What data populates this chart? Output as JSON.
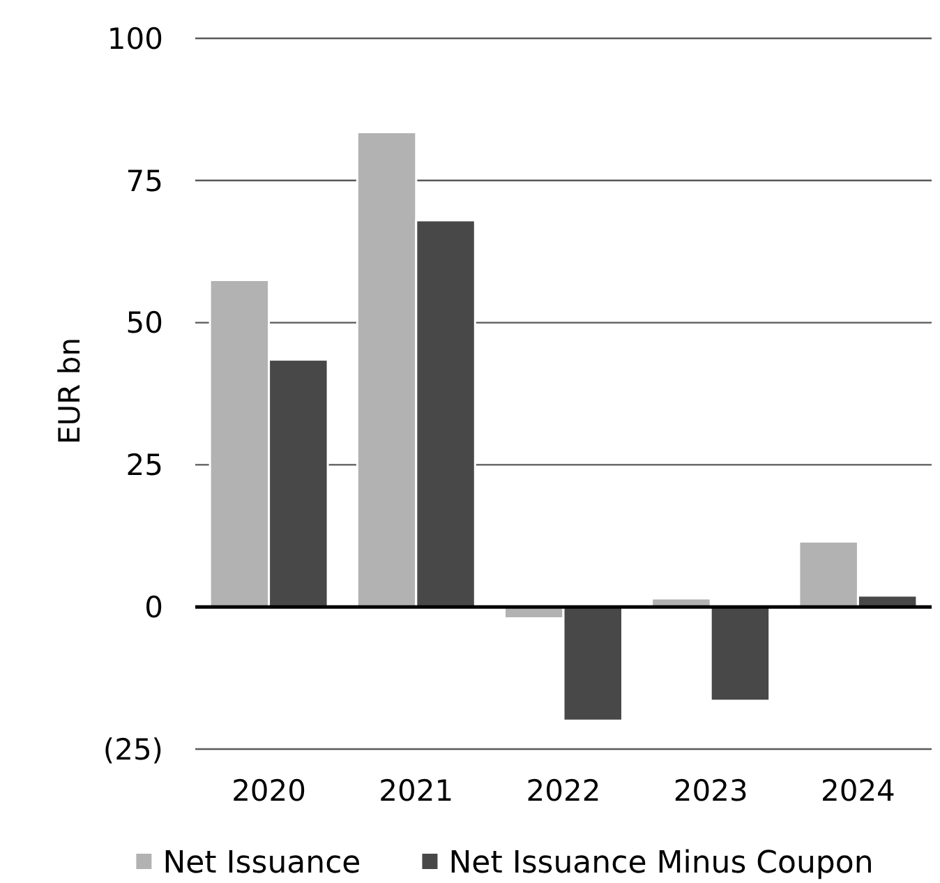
{
  "chart_data": {
    "type": "bar",
    "categories": [
      "2020",
      "2021",
      "2022",
      "2023",
      "2024"
    ],
    "series": [
      {
        "name": "Net Issuance",
        "color": "#b2b2b2",
        "values": [
          57.5,
          83.5,
          -2,
          1.5,
          11.5
        ]
      },
      {
        "name": "Net Issuance Minus Coupon",
        "color": "#484848",
        "values": [
          43.5,
          68,
          -20,
          -16.5,
          2
        ]
      }
    ],
    "ylabel": "EUR bn",
    "ylim": [
      -25,
      100
    ],
    "yticks": [
      {
        "value": -25,
        "label": "(25)"
      },
      0,
      25,
      50,
      75,
      100
    ],
    "grid": "y",
    "legend": "bottom"
  }
}
